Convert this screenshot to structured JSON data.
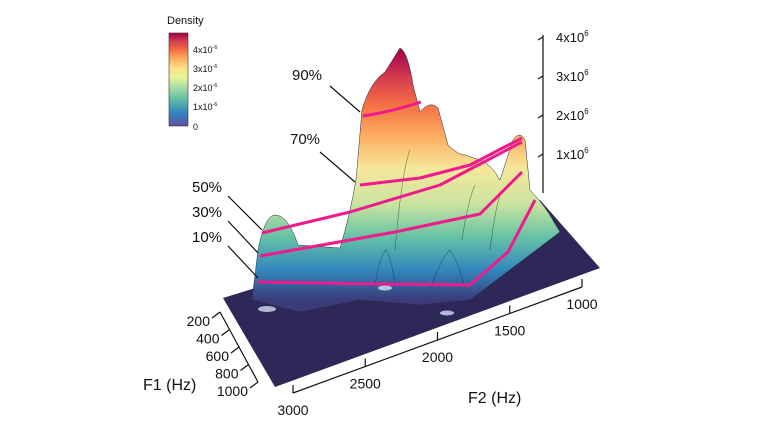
{
  "chart_data": {
    "type": "surface",
    "title": "",
    "xlabel": "F2 (Hz)",
    "ylabel": "F1 (Hz)",
    "zlabel": "",
    "x_ticks": [
      "3000",
      "2500",
      "2000",
      "1500",
      "1000"
    ],
    "y_ticks": [
      "200",
      "400",
      "600",
      "800",
      "1000"
    ],
    "z_ticks": [
      "1x10",
      "2x10",
      "3x10",
      "4x10"
    ],
    "z_tick_exponent": "6",
    "xlim": [
      3000,
      1000
    ],
    "ylim": [
      200,
      1000
    ],
    "zlim": [
      0,
      4000000
    ],
    "contour_levels": [
      "10%",
      "30%",
      "50%",
      "70%",
      "90%"
    ],
    "contour_color": "#ee1b8c",
    "colorbar": {
      "title": "Density",
      "ticks": [
        "0",
        "1x10",
        "2x10",
        "3x10",
        "4x10"
      ],
      "tick_exponent": "-6",
      "colormap": [
        "#5e4fa2",
        "#3288bd",
        "#66c2a5",
        "#abdda4",
        "#e6f598",
        "#fee08b",
        "#fdae61",
        "#f46d43",
        "#d53e4f",
        "#9e0142"
      ],
      "range": [
        0,
        4.5e-06
      ]
    }
  }
}
